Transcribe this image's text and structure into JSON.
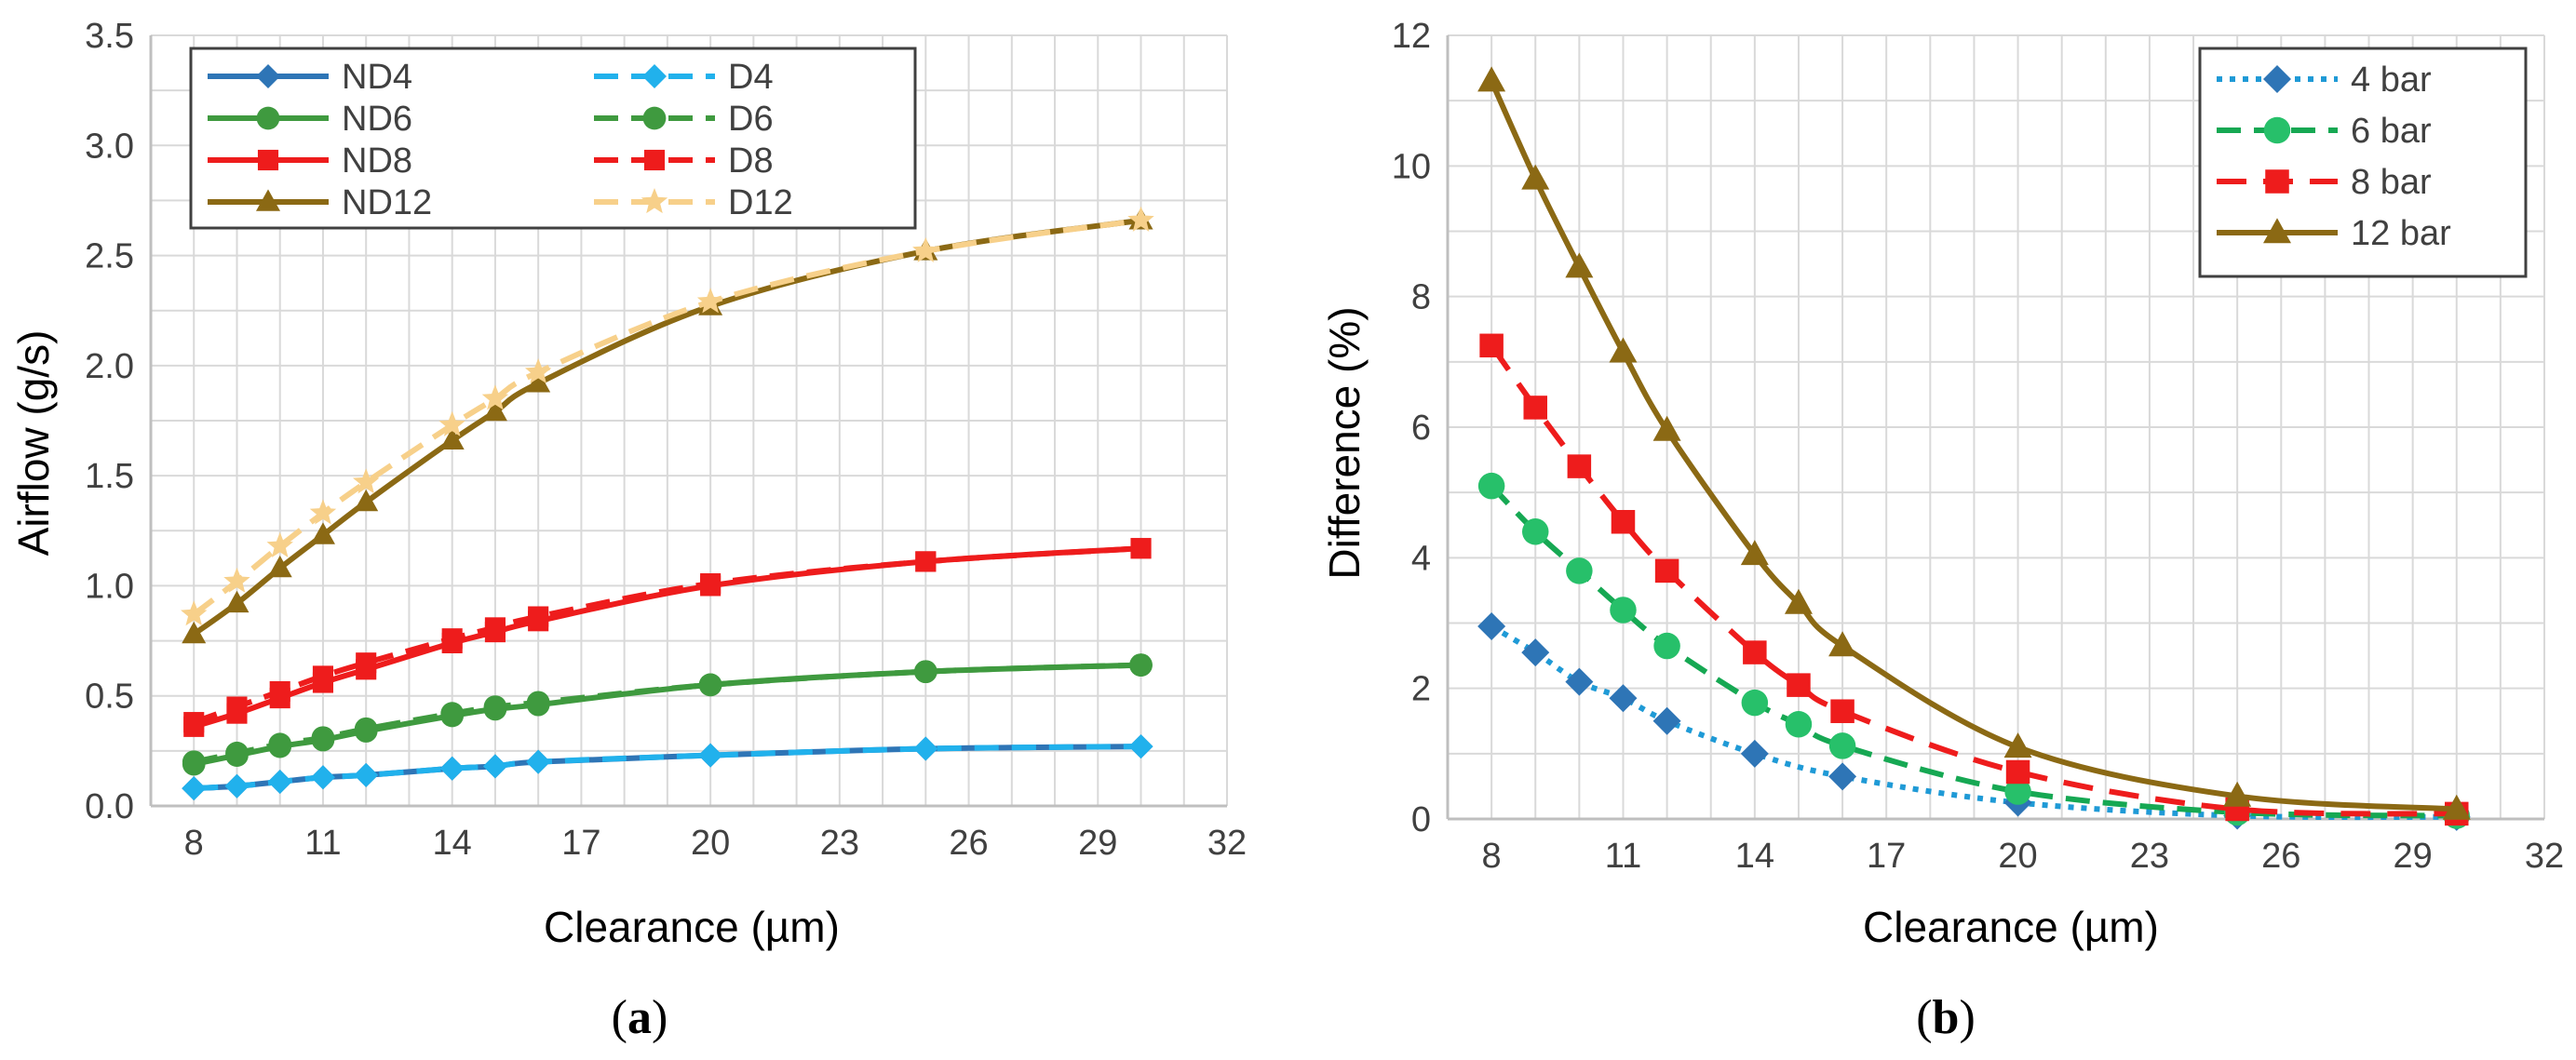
{
  "chart_data": [
    {
      "id": "a",
      "type": "line",
      "caption_letter": "a",
      "title": "",
      "xlabel": "Clearance (µm)",
      "ylabel": "Airflow (g/s)",
      "xlim": [
        7,
        32
      ],
      "ylim": [
        0,
        3.5
      ],
      "xticks": [
        8,
        11,
        14,
        17,
        20,
        23,
        26,
        29,
        32
      ],
      "yticks": [
        0.0,
        0.5,
        1.0,
        1.5,
        2.0,
        2.5,
        3.0,
        3.5
      ],
      "ytick_labels": [
        "0.0",
        "0.5",
        "1.0",
        "1.5",
        "2.0",
        "2.5",
        "3.0",
        "3.5"
      ],
      "grid": true,
      "legend_position": "top-left",
      "x": [
        8,
        9,
        10,
        11,
        12,
        14,
        15,
        16,
        20,
        25,
        30
      ],
      "series": [
        {
          "name": "ND4",
          "color": "#2e75b6",
          "dash": "solid",
          "marker": "diamond",
          "values": [
            0.08,
            0.09,
            0.11,
            0.13,
            0.14,
            0.17,
            0.18,
            0.2,
            0.23,
            0.26,
            0.27
          ]
        },
        {
          "name": "ND6",
          "color": "#3f9a3f",
          "dash": "solid",
          "marker": "circle",
          "values": [
            0.19,
            0.23,
            0.27,
            0.3,
            0.34,
            0.41,
            0.44,
            0.46,
            0.55,
            0.61,
            0.64
          ]
        },
        {
          "name": "ND8",
          "color": "#ee1c1c",
          "dash": "solid",
          "marker": "square",
          "values": [
            0.36,
            0.42,
            0.49,
            0.56,
            0.62,
            0.74,
            0.79,
            0.84,
            1.0,
            1.11,
            1.17
          ]
        },
        {
          "name": "ND12",
          "color": "#8b6914",
          "dash": "solid",
          "marker": "triangle",
          "values": [
            0.78,
            0.92,
            1.08,
            1.23,
            1.38,
            1.66,
            1.79,
            1.92,
            2.27,
            2.52,
            2.66
          ]
        },
        {
          "name": "D4",
          "color": "#21b1ec",
          "dash": "dashed",
          "marker": "diamond",
          "values": [
            0.08,
            0.09,
            0.11,
            0.13,
            0.14,
            0.17,
            0.18,
            0.2,
            0.23,
            0.26,
            0.27
          ]
        },
        {
          "name": "D6",
          "color": "#3f9a3f",
          "dash": "dashed",
          "marker": "circle",
          "values": [
            0.2,
            0.24,
            0.28,
            0.31,
            0.35,
            0.42,
            0.45,
            0.47,
            0.55,
            0.61,
            0.64
          ]
        },
        {
          "name": "D8",
          "color": "#ee1c1c",
          "dash": "dashed",
          "marker": "square",
          "values": [
            0.38,
            0.45,
            0.52,
            0.59,
            0.65,
            0.76,
            0.81,
            0.86,
            1.01,
            1.11,
            1.17
          ]
        },
        {
          "name": "D12",
          "color": "#f7d08a",
          "dash": "dashed",
          "marker": "star",
          "values": [
            0.87,
            1.02,
            1.18,
            1.33,
            1.47,
            1.73,
            1.85,
            1.97,
            2.29,
            2.52,
            2.66
          ]
        }
      ]
    },
    {
      "id": "b",
      "type": "line",
      "caption_letter": "b",
      "title": "",
      "xlabel": "Clearance (µm)",
      "ylabel": "Difference (%)",
      "xlim": [
        7,
        32
      ],
      "ylim": [
        0,
        12
      ],
      "xticks": [
        8,
        11,
        14,
        17,
        20,
        23,
        26,
        29,
        32
      ],
      "yticks": [
        0,
        2,
        4,
        6,
        8,
        10,
        12
      ],
      "ytick_labels": [
        "0",
        "2",
        "4",
        "6",
        "8",
        "10",
        "12"
      ],
      "grid": true,
      "legend_position": "top-right",
      "x": [
        8,
        9,
        10,
        11,
        12,
        14,
        15,
        16,
        20,
        25,
        30
      ],
      "series": [
        {
          "name": "4 bar",
          "color": "#2e75b6",
          "lineColor": "#1f9ad6",
          "dash": "dotted",
          "marker": "diamond",
          "smooth": true,
          "values": [
            2.95,
            2.55,
            2.1,
            1.85,
            1.5,
            1.0,
            null,
            0.65,
            0.25,
            0.05,
            0.03
          ]
        },
        {
          "name": "6 bar",
          "color": "#27c06a",
          "lineColor": "#16a853",
          "dash": "dashed",
          "marker": "circle",
          "smooth": true,
          "values": [
            5.1,
            4.4,
            3.8,
            3.2,
            2.65,
            1.78,
            1.45,
            1.12,
            0.42,
            0.1,
            0.05
          ]
        },
        {
          "name": "8 bar",
          "color": "#ee1c1c",
          "lineColor": "#ee1c1c",
          "dash": "longdash",
          "marker": "square",
          "smooth": true,
          "values": [
            7.25,
            6.3,
            5.4,
            4.55,
            3.8,
            2.55,
            2.05,
            1.65,
            0.72,
            0.15,
            0.08
          ]
        },
        {
          "name": "12 bar",
          "color": "#8b6914",
          "lineColor": "#8b6914",
          "dash": "solid",
          "marker": "triangle",
          "smooth": true,
          "values": [
            11.3,
            9.8,
            8.45,
            7.15,
            5.95,
            4.05,
            3.3,
            2.65,
            1.1,
            0.35,
            0.15
          ]
        }
      ]
    }
  ]
}
